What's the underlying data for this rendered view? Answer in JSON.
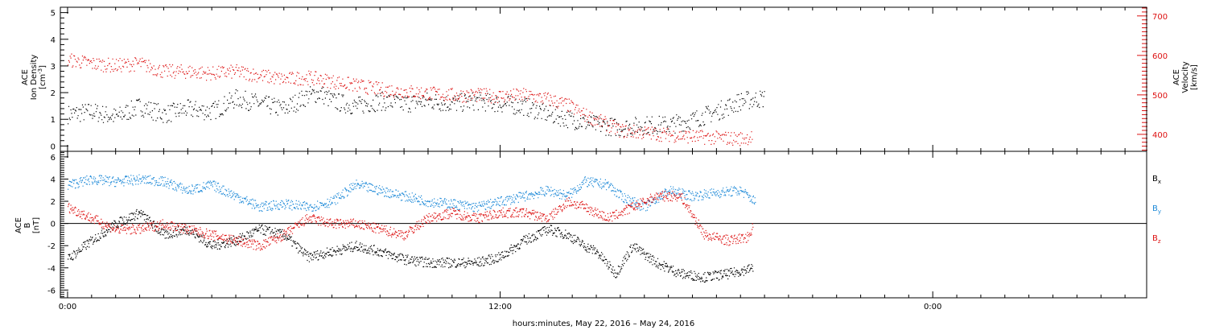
{
  "chart_data": [
    {
      "panel": "top",
      "type": "scatter",
      "left_axis": {
        "label_line1": "ACE",
        "label_line2": "Ion Density",
        "unit": "[cm",
        "unit_sup": "-3",
        "unit_close": "]",
        "range": [
          -0.2,
          5.2
        ],
        "ticks": [
          0,
          1,
          2,
          3,
          4,
          5
        ],
        "color": "#000000"
      },
      "right_axis": {
        "label_line1": "ACE",
        "label_line2": "Velocity",
        "unit": "[km/s]",
        "range": [
          357,
          722
        ],
        "ticks": [
          400,
          500,
          600,
          700
        ],
        "color": "#dd1111"
      },
      "series": [
        {
          "color": "#000000",
          "axis": "left",
          "points": [
            [
              0.0,
              1.2
            ],
            [
              1.0,
              1.3
            ],
            [
              2.0,
              1.1
            ],
            [
              3.0,
              1.5
            ],
            [
              4.0,
              1.2
            ],
            [
              5.0,
              1.4
            ],
            [
              6.0,
              1.3
            ],
            [
              7.0,
              1.8
            ],
            [
              8.0,
              1.6
            ],
            [
              9.0,
              1.4
            ],
            [
              10.0,
              1.9
            ],
            [
              10.5,
              2.0
            ],
            [
              11.0,
              1.7
            ],
            [
              12.0,
              1.5
            ],
            [
              13.0,
              1.7
            ],
            [
              14.0,
              1.6
            ],
            [
              15.0,
              1.7
            ],
            [
              16.0,
              1.6
            ],
            [
              17.0,
              1.7
            ],
            [
              18.0,
              1.6
            ],
            [
              19.0,
              1.5
            ],
            [
              20.0,
              1.2
            ],
            [
              21.0,
              1.0
            ],
            [
              22.0,
              0.8
            ],
            [
              23.0,
              0.7
            ],
            [
              24.0,
              0.8
            ],
            [
              25.0,
              0.8
            ],
            [
              26.0,
              1.0
            ],
            [
              27.0,
              1.3
            ],
            [
              28.0,
              1.7
            ],
            [
              29.0,
              1.8
            ]
          ]
        },
        {
          "color": "#dd1111",
          "axis": "right",
          "points": [
            [
              0.0,
              590
            ],
            [
              1.0,
              580
            ],
            [
              2.0,
              575
            ],
            [
              3.0,
              580
            ],
            [
              4.0,
              560
            ],
            [
              5.0,
              560
            ],
            [
              6.0,
              555
            ],
            [
              7.0,
              560
            ],
            [
              8.0,
              550
            ],
            [
              9.0,
              540
            ],
            [
              10.0,
              545
            ],
            [
              11.0,
              535
            ],
            [
              12.0,
              525
            ],
            [
              13.0,
              515
            ],
            [
              14.0,
              510
            ],
            [
              15.0,
              505
            ],
            [
              16.0,
              500
            ],
            [
              17.0,
              500
            ],
            [
              18.0,
              498
            ],
            [
              19.0,
              500
            ],
            [
              20.0,
              490
            ],
            [
              20.8,
              475
            ],
            [
              21.5,
              450
            ],
            [
              22.3,
              430
            ],
            [
              23.0,
              410
            ],
            [
              24.0,
              405
            ],
            [
              25.0,
              400
            ],
            [
              26.0,
              395
            ],
            [
              27.0,
              392
            ],
            [
              28.0,
              390
            ],
            [
              28.5,
              395
            ]
          ]
        }
      ]
    },
    {
      "panel": "bottom",
      "type": "scatter",
      "left_axis": {
        "label_line1": "ACE",
        "label_line2": "B",
        "unit": "[nT]",
        "range": [
          -6.7,
          6.5
        ],
        "ticks": [
          -6,
          -4,
          -2,
          0,
          2,
          4,
          6
        ],
        "color": "#000000"
      },
      "zero_line": true,
      "series": [
        {
          "name": "B",
          "subscript": "x",
          "color": "#000000",
          "points": [
            [
              0.0,
              -3.2
            ],
            [
              1.0,
              -1.5
            ],
            [
              2.0,
              0.0
            ],
            [
              3.0,
              1.0
            ],
            [
              4.0,
              -1.0
            ],
            [
              5.0,
              -0.5
            ],
            [
              6.0,
              -2.0
            ],
            [
              7.0,
              -1.5
            ],
            [
              8.0,
              -0.5
            ],
            [
              9.0,
              -1.0
            ],
            [
              10.0,
              -3.0
            ],
            [
              11.0,
              -2.5
            ],
            [
              12.0,
              -2.0
            ],
            [
              13.0,
              -2.5
            ],
            [
              14.0,
              -3.2
            ],
            [
              15.0,
              -3.5
            ],
            [
              16.0,
              -3.5
            ],
            [
              17.0,
              -3.5
            ],
            [
              18.0,
              -3.0
            ],
            [
              19.0,
              -1.5
            ],
            [
              20.0,
              -0.5
            ],
            [
              20.8,
              -1.0
            ],
            [
              21.5,
              -2.0
            ],
            [
              22.0,
              -2.5
            ],
            [
              22.8,
              -4.5
            ],
            [
              23.5,
              -2.0
            ],
            [
              24.5,
              -3.5
            ],
            [
              25.5,
              -4.5
            ],
            [
              26.5,
              -4.8
            ],
            [
              27.5,
              -4.5
            ],
            [
              28.5,
              -4.0
            ]
          ]
        },
        {
          "name": "B",
          "subscript": "y",
          "color": "#1f8ad8",
          "points": [
            [
              0.0,
              3.5
            ],
            [
              1.0,
              4.0
            ],
            [
              2.0,
              3.8
            ],
            [
              3.0,
              4.0
            ],
            [
              4.0,
              3.8
            ],
            [
              5.0,
              3.0
            ],
            [
              6.0,
              3.5
            ],
            [
              7.0,
              2.5
            ],
            [
              8.0,
              1.5
            ],
            [
              9.0,
              1.8
            ],
            [
              10.0,
              1.5
            ],
            [
              11.0,
              2.0
            ],
            [
              12.0,
              3.5
            ],
            [
              13.0,
              3.0
            ],
            [
              14.0,
              2.5
            ],
            [
              15.0,
              2.0
            ],
            [
              16.0,
              1.8
            ],
            [
              17.0,
              1.5
            ],
            [
              18.0,
              2.0
            ],
            [
              19.0,
              2.5
            ],
            [
              20.0,
              3.0
            ],
            [
              20.8,
              2.5
            ],
            [
              21.5,
              3.8
            ],
            [
              22.5,
              3.5
            ],
            [
              23.0,
              2.5
            ],
            [
              24.0,
              1.5
            ],
            [
              25.0,
              3.0
            ],
            [
              26.0,
              2.5
            ],
            [
              27.0,
              2.8
            ],
            [
              28.0,
              3.0
            ],
            [
              28.6,
              2.0
            ]
          ]
        },
        {
          "name": "B",
          "subscript": "z",
          "color": "#dd1111",
          "points": [
            [
              0.0,
              1.5
            ],
            [
              1.0,
              0.5
            ],
            [
              2.0,
              -0.5
            ],
            [
              3.0,
              -0.5
            ],
            [
              4.0,
              0.0
            ],
            [
              5.0,
              -0.5
            ],
            [
              6.0,
              -1.0
            ],
            [
              7.0,
              -1.5
            ],
            [
              8.0,
              -2.0
            ],
            [
              9.0,
              -1.0
            ],
            [
              10.0,
              0.5
            ],
            [
              11.0,
              0.0
            ],
            [
              12.0,
              0.0
            ],
            [
              13.0,
              -0.5
            ],
            [
              14.0,
              -1.0
            ],
            [
              15.0,
              0.5
            ],
            [
              16.0,
              1.0
            ],
            [
              17.0,
              0.5
            ],
            [
              18.0,
              1.0
            ],
            [
              19.0,
              1.0
            ],
            [
              20.0,
              0.5
            ],
            [
              20.8,
              2.0
            ],
            [
              21.5,
              1.5
            ],
            [
              22.5,
              0.5
            ],
            [
              23.5,
              1.5
            ],
            [
              24.5,
              2.5
            ],
            [
              25.5,
              2.5
            ],
            [
              26.5,
              -1.0
            ],
            [
              27.5,
              -1.5
            ],
            [
              28.3,
              -1.2
            ],
            [
              28.5,
              -0.3
            ]
          ]
        }
      ]
    }
  ],
  "x_axis": {
    "range_hours": [
      -0.3,
      44.9
    ],
    "tick_labels": [
      {
        "hour": 0,
        "label": "0:00"
      },
      {
        "hour": 18,
        "label": "12:00"
      },
      {
        "hour": 36,
        "label": "0:00"
      }
    ],
    "title": "hours:minutes, May 22, 2016 – May 24, 2016"
  },
  "colors": {
    "black": "#000000",
    "red": "#dd1111",
    "blue": "#1f8ad8"
  }
}
